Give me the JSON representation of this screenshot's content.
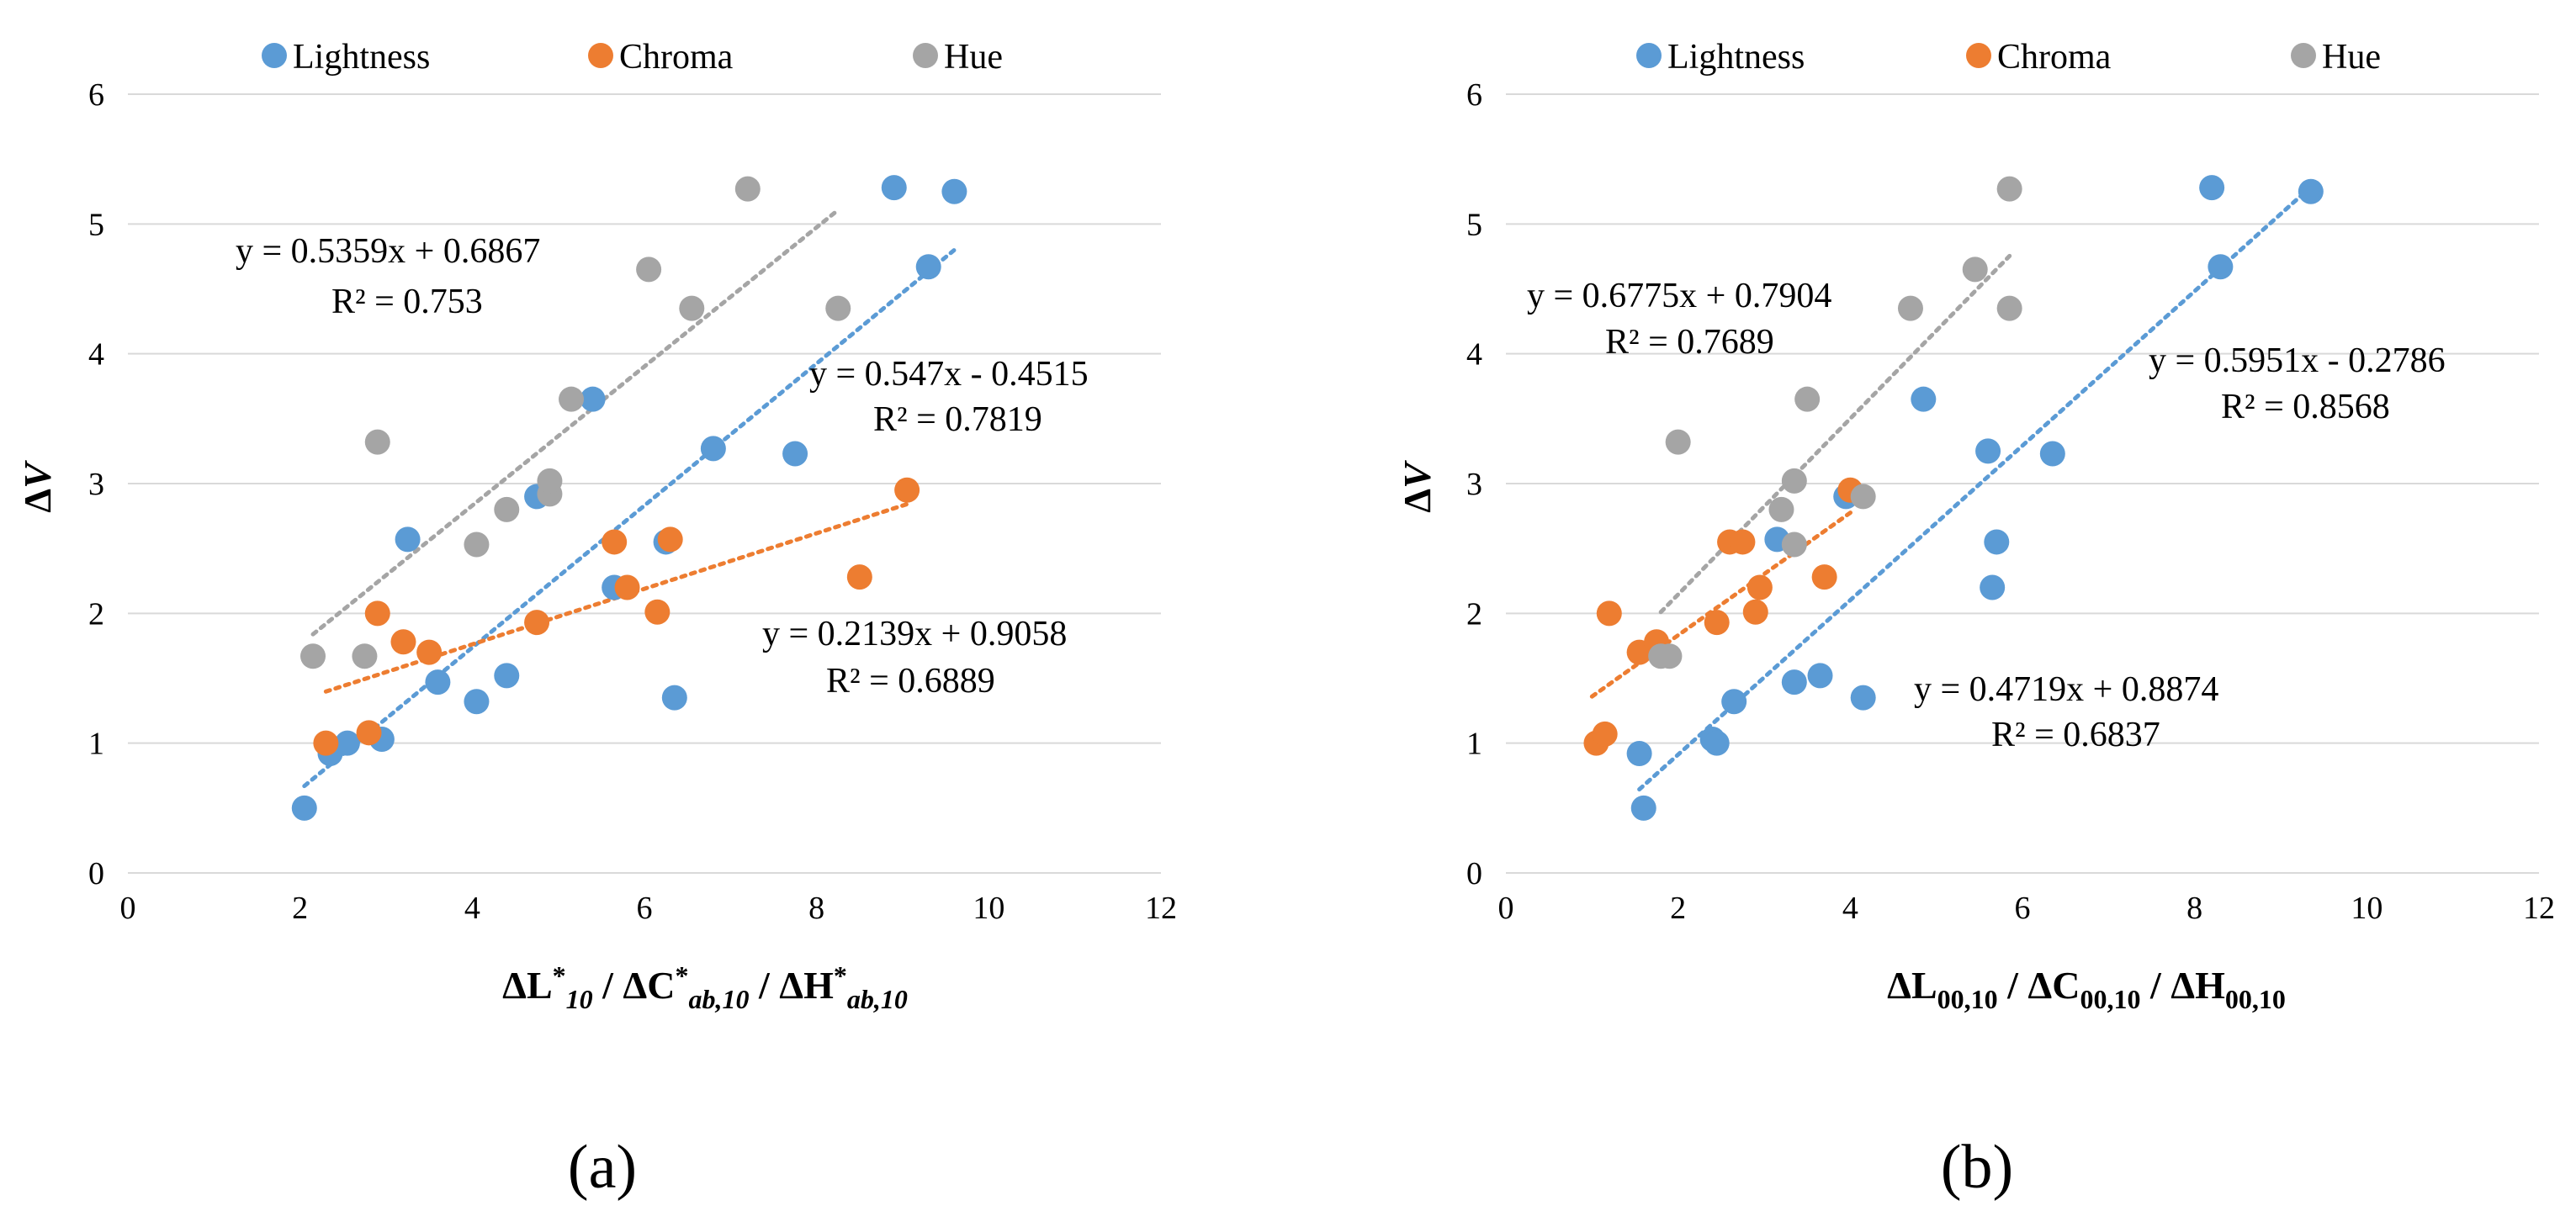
{
  "figure": {
    "panel_labels": [
      "(a)",
      "(b)"
    ]
  },
  "colors": {
    "Lightness": "#5B9BD5",
    "Chroma": "#ED7D31",
    "Hue": "#A5A5A5"
  },
  "chart_data": [
    {
      "type": "scatter",
      "panel": "(a)",
      "title": "",
      "xlabel": {
        "parts": [
          {
            "t": "ΔL",
            "italic": false
          },
          {
            "t": "*",
            "italic": false,
            "sup": true
          },
          {
            "t": "10",
            "italic": true,
            "sub": true
          },
          {
            "t": " / ΔC",
            "italic": false
          },
          {
            "t": "*",
            "italic": false,
            "sup": true
          },
          {
            "t": "ab,10",
            "italic": true,
            "sub": true
          },
          {
            "t": " / ΔH",
            "italic": false
          },
          {
            "t": "*",
            "italic": false,
            "sup": true
          },
          {
            "t": "ab,10",
            "italic": true,
            "sub": true
          }
        ]
      },
      "ylabel": "ΔV",
      "xlim": [
        0,
        12
      ],
      "ylim": [
        0,
        6
      ],
      "xticks": [
        "0",
        "2",
        "4",
        "6",
        "8",
        "10",
        "12"
      ],
      "yticks": [
        "0",
        "1",
        "2",
        "3",
        "4",
        "5",
        "6"
      ],
      "grid": "horizontal",
      "legend": "top",
      "series": [
        {
          "name": "Lightness",
          "points": [
            [
              2.05,
              0.5
            ],
            [
              2.35,
              0.92
            ],
            [
              2.55,
              1.0
            ],
            [
              2.95,
              1.03
            ],
            [
              3.25,
              2.57
            ],
            [
              3.6,
              1.47
            ],
            [
              4.05,
              1.32
            ],
            [
              4.4,
              1.52
            ],
            [
              4.75,
              2.9
            ],
            [
              5.4,
              3.65
            ],
            [
              5.65,
              2.2
            ],
            [
              6.25,
              2.55
            ],
            [
              6.35,
              1.35
            ],
            [
              6.8,
              3.27
            ],
            [
              7.75,
              3.23
            ],
            [
              8.9,
              5.28
            ],
            [
              9.3,
              4.67
            ],
            [
              9.6,
              5.25
            ]
          ],
          "trend": {
            "slope": 0.547,
            "intercept": -0.4515,
            "x_range": [
              2.05,
              9.6
            ],
            "equation": "y = 0.547x - 0.4515",
            "r2": "R² = 0.7819"
          }
        },
        {
          "name": "Chroma",
          "points": [
            [
              2.3,
              1.0
            ],
            [
              2.8,
              1.08
            ],
            [
              2.9,
              2.0
            ],
            [
              3.2,
              1.78
            ],
            [
              3.5,
              1.7
            ],
            [
              4.75,
              1.93
            ],
            [
              5.65,
              2.55
            ],
            [
              5.8,
              2.2
            ],
            [
              6.15,
              2.01
            ],
            [
              6.3,
              2.57
            ],
            [
              8.5,
              2.28
            ],
            [
              9.05,
              2.95
            ]
          ],
          "trend": {
            "slope": 0.2139,
            "intercept": 0.9058,
            "x_range": [
              2.3,
              9.05
            ],
            "equation": "y = 0.2139x + 0.9058",
            "r2": "R² = 0.6889"
          }
        },
        {
          "name": "Hue",
          "points": [
            [
              2.15,
              1.67
            ],
            [
              2.75,
              1.67
            ],
            [
              2.9,
              3.32
            ],
            [
              4.05,
              2.53
            ],
            [
              4.4,
              2.8
            ],
            [
              4.9,
              2.92
            ],
            [
              4.9,
              3.02
            ],
            [
              5.15,
              3.65
            ],
            [
              6.05,
              4.65
            ],
            [
              6.55,
              4.35
            ],
            [
              7.2,
              5.27
            ],
            [
              8.25,
              4.35
            ]
          ],
          "trend": {
            "slope": 0.5359,
            "intercept": 0.6867,
            "x_range": [
              2.15,
              8.25
            ],
            "equation": "y = 0.5359x + 0.6867",
            "r2": "R² = 0.753"
          }
        }
      ]
    },
    {
      "type": "scatter",
      "panel": "(b)",
      "title": "",
      "xlabel": {
        "parts": [
          {
            "t": "ΔL",
            "italic": false
          },
          {
            "t": "00,10",
            "italic": false,
            "sub": true
          },
          {
            "t": " / ΔC",
            "italic": false
          },
          {
            "t": "00,10",
            "italic": false,
            "sub": true
          },
          {
            "t": " / ΔH",
            "italic": false
          },
          {
            "t": "00,10",
            "italic": false,
            "sub": true
          }
        ]
      },
      "ylabel": "ΔV",
      "xlim": [
        0,
        12
      ],
      "ylim": [
        0,
        6
      ],
      "xticks": [
        "0",
        "2",
        "4",
        "6",
        "8",
        "10",
        "12"
      ],
      "yticks": [
        "0",
        "1",
        "2",
        "3",
        "4",
        "5",
        "6"
      ],
      "grid": "horizontal",
      "legend": "top",
      "series": [
        {
          "name": "Lightness",
          "points": [
            [
              1.55,
              0.92
            ],
            [
              1.6,
              0.5
            ],
            [
              2.4,
              1.03
            ],
            [
              2.45,
              1.0
            ],
            [
              2.65,
              1.32
            ],
            [
              3.15,
              2.57
            ],
            [
              3.35,
              1.47
            ],
            [
              3.65,
              1.52
            ],
            [
              3.95,
              2.9
            ],
            [
              4.15,
              1.35
            ],
            [
              4.85,
              3.65
            ],
            [
              5.6,
              3.25
            ],
            [
              5.65,
              2.2
            ],
            [
              5.7,
              2.55
            ],
            [
              6.35,
              3.23
            ],
            [
              8.2,
              5.28
            ],
            [
              8.3,
              4.67
            ],
            [
              9.35,
              5.25
            ]
          ],
          "trend": {
            "slope": 0.5951,
            "intercept": -0.2786,
            "x_range": [
              1.55,
              9.35
            ],
            "equation": "y = 0.5951x - 0.2786",
            "r2": "R² = 0.8568"
          }
        },
        {
          "name": "Chroma",
          "points": [
            [
              1.05,
              1.0
            ],
            [
              1.15,
              1.07
            ],
            [
              1.2,
              2.0
            ],
            [
              1.55,
              1.7
            ],
            [
              1.75,
              1.78
            ],
            [
              2.45,
              1.93
            ],
            [
              2.6,
              2.55
            ],
            [
              2.75,
              2.55
            ],
            [
              2.9,
              2.01
            ],
            [
              2.95,
              2.2
            ],
            [
              3.7,
              2.28
            ],
            [
              4.0,
              2.95
            ]
          ],
          "trend": {
            "slope": 0.4719,
            "intercept": 0.8874,
            "x_range": [
              1.0,
              4.05
            ],
            "equation": "y = 0.4719x + 0.8874",
            "r2": "R² = 0.6837"
          }
        },
        {
          "name": "Hue",
          "points": [
            [
              1.8,
              1.67
            ],
            [
              1.9,
              1.67
            ],
            [
              2.0,
              3.32
            ],
            [
              3.2,
              2.8
            ],
            [
              3.35,
              3.02
            ],
            [
              3.35,
              2.53
            ],
            [
              3.5,
              3.65
            ],
            [
              4.15,
              2.9
            ],
            [
              4.7,
              4.35
            ],
            [
              5.45,
              4.65
            ],
            [
              5.85,
              5.27
            ],
            [
              5.85,
              4.35
            ]
          ],
          "trend": {
            "slope": 0.6775,
            "intercept": 0.7904,
            "x_range": [
              1.8,
              5.85
            ],
            "equation": "y = 0.6775x + 0.7904",
            "r2": "R² = 0.7689"
          }
        }
      ]
    }
  ]
}
